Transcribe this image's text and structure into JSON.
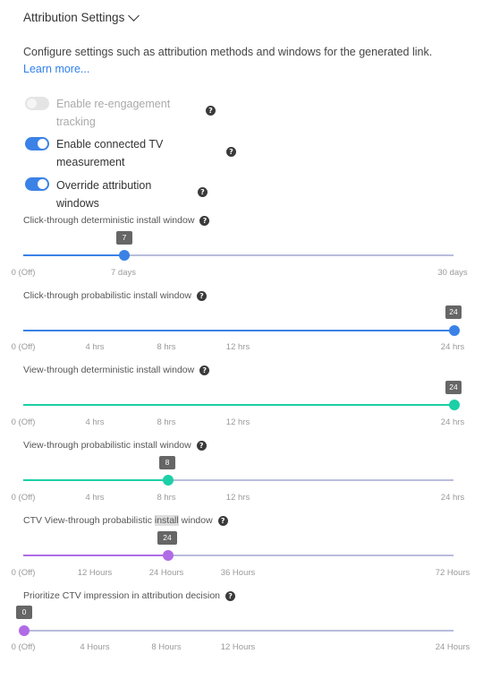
{
  "header": {
    "title": "Attribution Settings"
  },
  "description": {
    "text": "Configure settings such as attribution methods and windows for the generated link. ",
    "link": "Learn more..."
  },
  "toggles": [
    {
      "label": "Enable re-engagement tracking",
      "on": false,
      "disabled": true
    },
    {
      "label": "Enable connected TV measurement",
      "on": true,
      "disabled": false
    },
    {
      "label": "Override attribution windows",
      "on": true,
      "disabled": false
    }
  ],
  "help_glyph": "?",
  "sliders": [
    {
      "label": "Click-through deterministic install window",
      "value": "7",
      "value_fraction": 0.2333,
      "color": "#3b82e6",
      "ticks": [
        "0 (Off)",
        "7 days",
        "30 days"
      ]
    },
    {
      "label": "Click-through probabilistic install window",
      "value": "24",
      "value_fraction": 1.0,
      "color": "#3b82e6",
      "ticks": [
        "0 (Off)",
        "4 hrs",
        "8 hrs",
        "12 hrs",
        "24 hrs"
      ]
    },
    {
      "label": "View-through deterministic install window",
      "value": "24",
      "value_fraction": 1.0,
      "color": "#1ccfa6",
      "ticks": [
        "0 (Off)",
        "4 hrs",
        "8 hrs",
        "12 hrs",
        "24 hrs"
      ]
    },
    {
      "label": "View-through probabilistic install window",
      "value": "8",
      "value_fraction": 0.333,
      "color": "#1ccfa6",
      "ticks": [
        "0 (Off)",
        "4 hrs",
        "8 hrs",
        "12 hrs",
        "24 hrs"
      ]
    },
    {
      "label_before": "CTV View-through probabilistic ",
      "label_highlight": "install",
      "label_after": " window",
      "value": "24",
      "value_fraction": 0.333,
      "color": "#b06be6",
      "ticks": [
        "0 (Off)",
        "12 Hours",
        "24 Hours",
        "36 Hours",
        "72 Hours"
      ]
    },
    {
      "label": "Prioritize CTV impression in attribution decision",
      "value": "0",
      "value_fraction": 0.0,
      "color": "#b06be6",
      "ticks": [
        "0 (Off)",
        "4 Hours",
        "8 Hours",
        "12 Hours",
        "24 Hours"
      ]
    }
  ]
}
